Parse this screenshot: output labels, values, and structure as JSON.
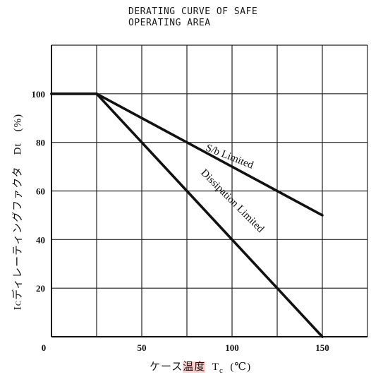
{
  "chart_data": {
    "type": "line",
    "title_lines": [
      "DERATING CURVE OF SAFE",
      "OPERATING AREA"
    ],
    "ylabel_text": "I",
    "ylabel_sub": "C",
    "ylabel_rest": "ディレーティングファクタ　Dt　(%)",
    "xlabel_jp_pre": "ケース",
    "xlabel_jp_hl": "温度",
    "xlabel_sym": "T",
    "xlabel_sub": "c",
    "xlabel_unit": "(℃)",
    "xlim": [
      0,
      175
    ],
    "ylim": [
      0,
      120
    ],
    "x_ticks": [
      0,
      50,
      100,
      150
    ],
    "x_grid": [
      25,
      50,
      75,
      100,
      125,
      150,
      175
    ],
    "y_ticks": [
      20,
      40,
      60,
      80,
      100
    ],
    "y_grid": [
      20,
      40,
      60,
      80,
      100,
      120
    ],
    "series": [
      {
        "x": [
          0,
          25,
          150
        ],
        "y": [
          100,
          100,
          50
        ]
      },
      {
        "x": [
          0,
          25,
          150
        ],
        "y": [
          100,
          100,
          0
        ]
      }
    ],
    "annotations": [
      {
        "text": "S/b Limited",
        "x": 98,
        "y": 73,
        "angle": 21.7
      },
      {
        "text": "Dissipation Limited",
        "x": 99,
        "y": 55,
        "angle": 45
      }
    ],
    "grid": true
  }
}
